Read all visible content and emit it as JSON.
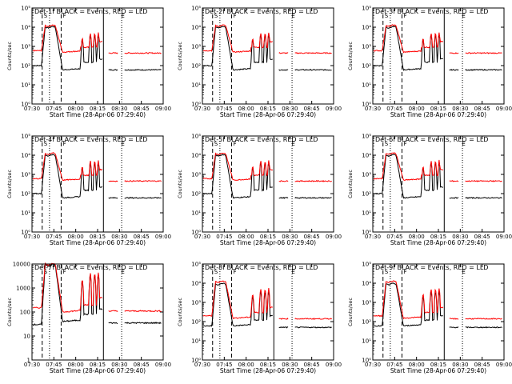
{
  "chart_data": [
    {
      "type": "line",
      "title": "Det-1f BLACK = Events, RED = LLD",
      "xlabel": "Start Time (28-Apr-06 07:29:40)",
      "ylabel": "Counts/sec",
      "yscale": "log",
      "ylim": [
        1,
        100000
      ],
      "y_tick_labels": [
        "10⁰",
        "10¹",
        "10²",
        "10³",
        "10⁴",
        "10⁵"
      ],
      "x_tick_labels": [
        "07:30",
        "07:45",
        "08:00",
        "08:15",
        "08:30",
        "08:45",
        "09:00"
      ],
      "xlim": [
        0,
        90
      ],
      "time_markers": {
        "dashed": [
          7,
          20
        ],
        "dotted": [
          12,
          61.5
        ],
        "solid": [
          49
        ]
      },
      "marker_labels": [
        {
          "t": 7,
          "text": "S"
        },
        {
          "t": 20,
          "text": "F"
        },
        {
          "t": 60,
          "text": "E"
        }
      ],
      "series": [
        {
          "name": "Events",
          "color": "#000000",
          "level": [
            100,
            10000,
            60,
            150,
            100,
            60
          ]
        },
        {
          "name": "LLD",
          "color": "#ff0000",
          "level": [
            600,
            12000,
            500,
            900,
            800,
            450
          ]
        }
      ]
    },
    {
      "type": "line",
      "title": "Det-2f BLACK = Events, RED = LLD",
      "xlabel": "Start Time (28-Apr-06 07:29:40)",
      "ylabel": "Counts/sec",
      "yscale": "log",
      "ylim": [
        1,
        100000
      ],
      "y_tick_labels": [
        "10⁰",
        "10¹",
        "10²",
        "10³",
        "10⁴",
        "10⁵"
      ],
      "x_tick_labels": [
        "07:30",
        "07:45",
        "08:00",
        "08:15",
        "08:30",
        "08:45",
        "09:00"
      ],
      "xlim": [
        0,
        90
      ],
      "time_markers": {
        "dashed": [
          7,
          20
        ],
        "dotted": [
          12,
          61.5
        ],
        "solid": [
          49
        ]
      },
      "marker_labels": [
        {
          "t": 7,
          "text": "S"
        },
        {
          "t": 20,
          "text": "F"
        },
        {
          "t": 60,
          "text": "E"
        }
      ],
      "series": [
        {
          "name": "Events",
          "color": "#000000",
          "level": [
            100,
            10000,
            60,
            150,
            100,
            60
          ]
        },
        {
          "name": "LLD",
          "color": "#ff0000",
          "level": [
            600,
            12000,
            500,
            900,
            800,
            450
          ]
        }
      ]
    },
    {
      "type": "line",
      "title": "Det-3f BLACK = Events, RED = LLD",
      "xlabel": "Start Time (28-Apr-06 07:29:40)",
      "ylabel": "Counts/sec",
      "yscale": "log",
      "ylim": [
        1,
        100000
      ],
      "y_tick_labels": [
        "10⁰",
        "10¹",
        "10²",
        "10³",
        "10⁴",
        "10⁵"
      ],
      "x_tick_labels": [
        "07:30",
        "07:45",
        "08:00",
        "08:15",
        "08:30",
        "08:45",
        "09:00"
      ],
      "xlim": [
        0,
        90
      ],
      "time_markers": {
        "dashed": [
          7,
          20
        ],
        "dotted": [
          12,
          61.5
        ],
        "solid": [
          49
        ]
      },
      "marker_labels": [
        {
          "t": 7,
          "text": "S"
        },
        {
          "t": 20,
          "text": "F"
        },
        {
          "t": 60,
          "text": "E"
        }
      ],
      "series": [
        {
          "name": "Events",
          "color": "#000000",
          "level": [
            100,
            10000,
            60,
            150,
            100,
            60
          ]
        },
        {
          "name": "LLD",
          "color": "#ff0000",
          "level": [
            600,
            12000,
            500,
            900,
            800,
            450
          ]
        }
      ]
    },
    {
      "type": "line",
      "title": "Det-4f BLACK = Events, RED = LLD",
      "xlabel": "Start Time (28-Apr-06 07:29:40)",
      "ylabel": "Counts/sec",
      "yscale": "log",
      "ylim": [
        1,
        100000
      ],
      "y_tick_labels": [
        "10⁰",
        "10¹",
        "10²",
        "10³",
        "10⁴",
        "10⁵"
      ],
      "x_tick_labels": [
        "07:30",
        "07:45",
        "08:00",
        "08:15",
        "08:30",
        "08:45",
        "09:00"
      ],
      "xlim": [
        0,
        90
      ],
      "time_markers": {
        "dashed": [
          7,
          20
        ],
        "dotted": [
          12,
          61.5
        ],
        "solid": [
          49
        ]
      },
      "marker_labels": [
        {
          "t": 7,
          "text": "S"
        },
        {
          "t": 20,
          "text": "F"
        },
        {
          "t": 60,
          "text": "E"
        }
      ],
      "series": [
        {
          "name": "Events",
          "color": "#000000",
          "level": [
            100,
            10000,
            60,
            150,
            100,
            60
          ]
        },
        {
          "name": "LLD",
          "color": "#ff0000",
          "level": [
            600,
            12000,
            500,
            900,
            800,
            450
          ]
        }
      ]
    },
    {
      "type": "line",
      "title": "Det-5f BLACK = Events, RED = LLD",
      "xlabel": "Start Time (28-Apr-06 07:29:40)",
      "ylabel": "Counts/sec",
      "yscale": "log",
      "ylim": [
        1,
        100000
      ],
      "y_tick_labels": [
        "10⁰",
        "10¹",
        "10²",
        "10³",
        "10⁴",
        "10⁵"
      ],
      "x_tick_labels": [
        "07:30",
        "07:45",
        "08:00",
        "08:15",
        "08:30",
        "08:45",
        "09:00"
      ],
      "xlim": [
        0,
        90
      ],
      "time_markers": {
        "dashed": [
          7,
          20
        ],
        "dotted": [
          12,
          61.5
        ],
        "solid": [
          49
        ]
      },
      "marker_labels": [
        {
          "t": 7,
          "text": "S"
        },
        {
          "t": 20,
          "text": "F"
        },
        {
          "t": 60,
          "text": "E"
        }
      ],
      "series": [
        {
          "name": "Events",
          "color": "#000000",
          "level": [
            100,
            10000,
            60,
            150,
            100,
            60
          ]
        },
        {
          "name": "LLD",
          "color": "#ff0000",
          "level": [
            600,
            12000,
            500,
            900,
            800,
            450
          ]
        }
      ]
    },
    {
      "type": "line",
      "title": "Det-6f BLACK = Events, RED = LLD",
      "xlabel": "Start Time (28-Apr-06 07:29:40)",
      "ylabel": "Counts/sec",
      "yscale": "log",
      "ylim": [
        1,
        100000
      ],
      "y_tick_labels": [
        "10⁰",
        "10¹",
        "10²",
        "10³",
        "10⁴",
        "10⁵"
      ],
      "x_tick_labels": [
        "07:30",
        "07:45",
        "08:00",
        "08:15",
        "08:30",
        "08:45",
        "09:00"
      ],
      "xlim": [
        0,
        90
      ],
      "time_markers": {
        "dashed": [
          7,
          20
        ],
        "dotted": [
          12,
          61.5
        ],
        "solid": [
          49
        ]
      },
      "marker_labels": [
        {
          "t": 7,
          "text": "S"
        },
        {
          "t": 20,
          "text": "F"
        },
        {
          "t": 60,
          "text": "E"
        }
      ],
      "series": [
        {
          "name": "Events",
          "color": "#000000",
          "level": [
            100,
            10000,
            60,
            150,
            100,
            60
          ]
        },
        {
          "name": "LLD",
          "color": "#ff0000",
          "level": [
            600,
            12000,
            500,
            900,
            800,
            450
          ]
        }
      ]
    },
    {
      "type": "line",
      "title": "Det-7f BLACK = Events, RED = LLD",
      "xlabel": "Start Time (28-Apr-06 07:29:40)",
      "ylabel": "Counts/sec",
      "yscale": "log",
      "ylim": [
        1,
        10000
      ],
      "y_tick_labels": [
        "1",
        "10",
        "100",
        "1000",
        "10000"
      ],
      "x_tick_labels": [
        "07:30",
        "07:45",
        "08:00",
        "08:15",
        "08:30",
        "08:45",
        "09:00"
      ],
      "xlim": [
        0,
        90
      ],
      "time_markers": {
        "dashed": [
          7,
          20
        ],
        "dotted": [
          12,
          61.5
        ],
        "solid": [
          49
        ]
      },
      "marker_labels": [
        {
          "t": 7,
          "text": "S"
        },
        {
          "t": 20,
          "text": "F"
        },
        {
          "t": 60,
          "text": "E"
        }
      ],
      "series": [
        {
          "name": "Events",
          "color": "#000000",
          "level": [
            30,
            9000,
            40,
            80,
            60,
            35
          ]
        },
        {
          "name": "LLD",
          "color": "#ff0000",
          "level": [
            150,
            10000,
            100,
            200,
            180,
            110
          ]
        }
      ]
    },
    {
      "type": "line",
      "title": "Det-8f BLACK = Events, RED = LLD",
      "xlabel": "Start Time (28-Apr-06 07:29:40)",
      "ylabel": "Counts/sec",
      "yscale": "log",
      "ylim": [
        1,
        100000
      ],
      "y_tick_labels": [
        "10⁰",
        "10¹",
        "10²",
        "10³",
        "10⁴",
        "10⁵"
      ],
      "x_tick_labels": [
        "07:30",
        "07:45",
        "08:00",
        "08:15",
        "08:30",
        "08:45",
        "09:00"
      ],
      "xlim": [
        0,
        90
      ],
      "time_markers": {
        "dashed": [
          7,
          20
        ],
        "dotted": [
          12,
          61.5
        ],
        "solid": [
          49
        ]
      },
      "marker_labels": [
        {
          "t": 7,
          "text": "S"
        },
        {
          "t": 20,
          "text": "F"
        },
        {
          "t": 60,
          "text": "E"
        }
      ],
      "series": [
        {
          "name": "Events",
          "color": "#000000",
          "level": [
            60,
            9000,
            60,
            120,
            90,
            50
          ]
        },
        {
          "name": "LLD",
          "color": "#ff0000",
          "level": [
            200,
            12000,
            150,
            300,
            250,
            140
          ]
        }
      ]
    },
    {
      "type": "line",
      "title": "Det-9f BLACK = Events, RED = LLD",
      "xlabel": "Start Time (28-Apr-06 07:29:40)",
      "ylabel": "Counts/sec",
      "yscale": "log",
      "ylim": [
        1,
        100000
      ],
      "y_tick_labels": [
        "10⁰",
        "10¹",
        "10²",
        "10³",
        "10⁴",
        "10⁵"
      ],
      "x_tick_labels": [
        "07:30",
        "07:45",
        "08:00",
        "08:15",
        "08:30",
        "08:45",
        "09:00"
      ],
      "xlim": [
        0,
        90
      ],
      "time_markers": {
        "dashed": [
          7,
          20
        ],
        "dotted": [
          12,
          61.5
        ],
        "solid": [
          49
        ]
      },
      "marker_labels": [
        {
          "t": 7,
          "text": "S"
        },
        {
          "t": 20,
          "text": "F"
        },
        {
          "t": 60,
          "text": "E"
        }
      ],
      "series": [
        {
          "name": "Events",
          "color": "#000000",
          "level": [
            60,
            9000,
            60,
            120,
            90,
            50
          ]
        },
        {
          "name": "LLD",
          "color": "#ff0000",
          "level": [
            200,
            12000,
            150,
            300,
            250,
            140
          ]
        }
      ]
    }
  ]
}
